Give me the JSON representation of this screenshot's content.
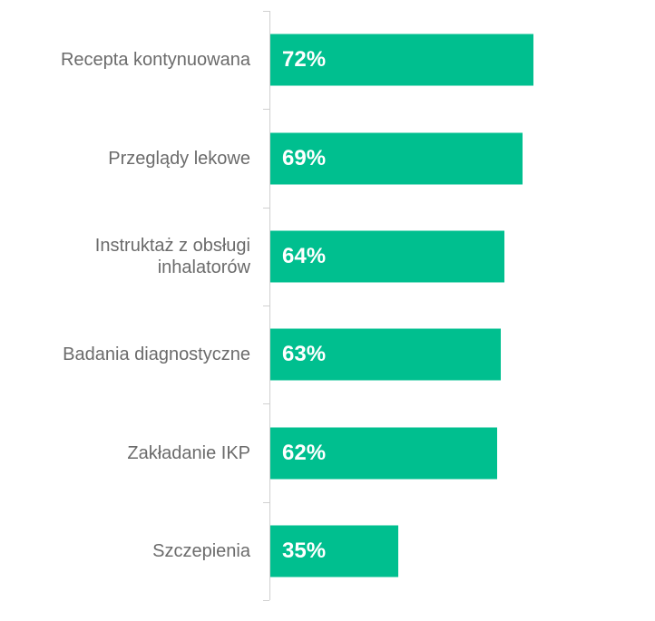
{
  "chart_data": {
    "type": "bar",
    "orientation": "horizontal",
    "categories": [
      "Recepta kontynuowana",
      "Przeglądy lekowe",
      "Instruktaż z obsługi inhalatorów",
      "Badania diagnostyczne",
      "Zakładanie IKP",
      "Szczepienia"
    ],
    "values": [
      72,
      69,
      64,
      63,
      62,
      35
    ],
    "value_labels": [
      "72%",
      "69%",
      "64%",
      "63%",
      "62%",
      "35%"
    ],
    "color": "#00bf8f",
    "xlim": [
      0,
      100
    ]
  }
}
